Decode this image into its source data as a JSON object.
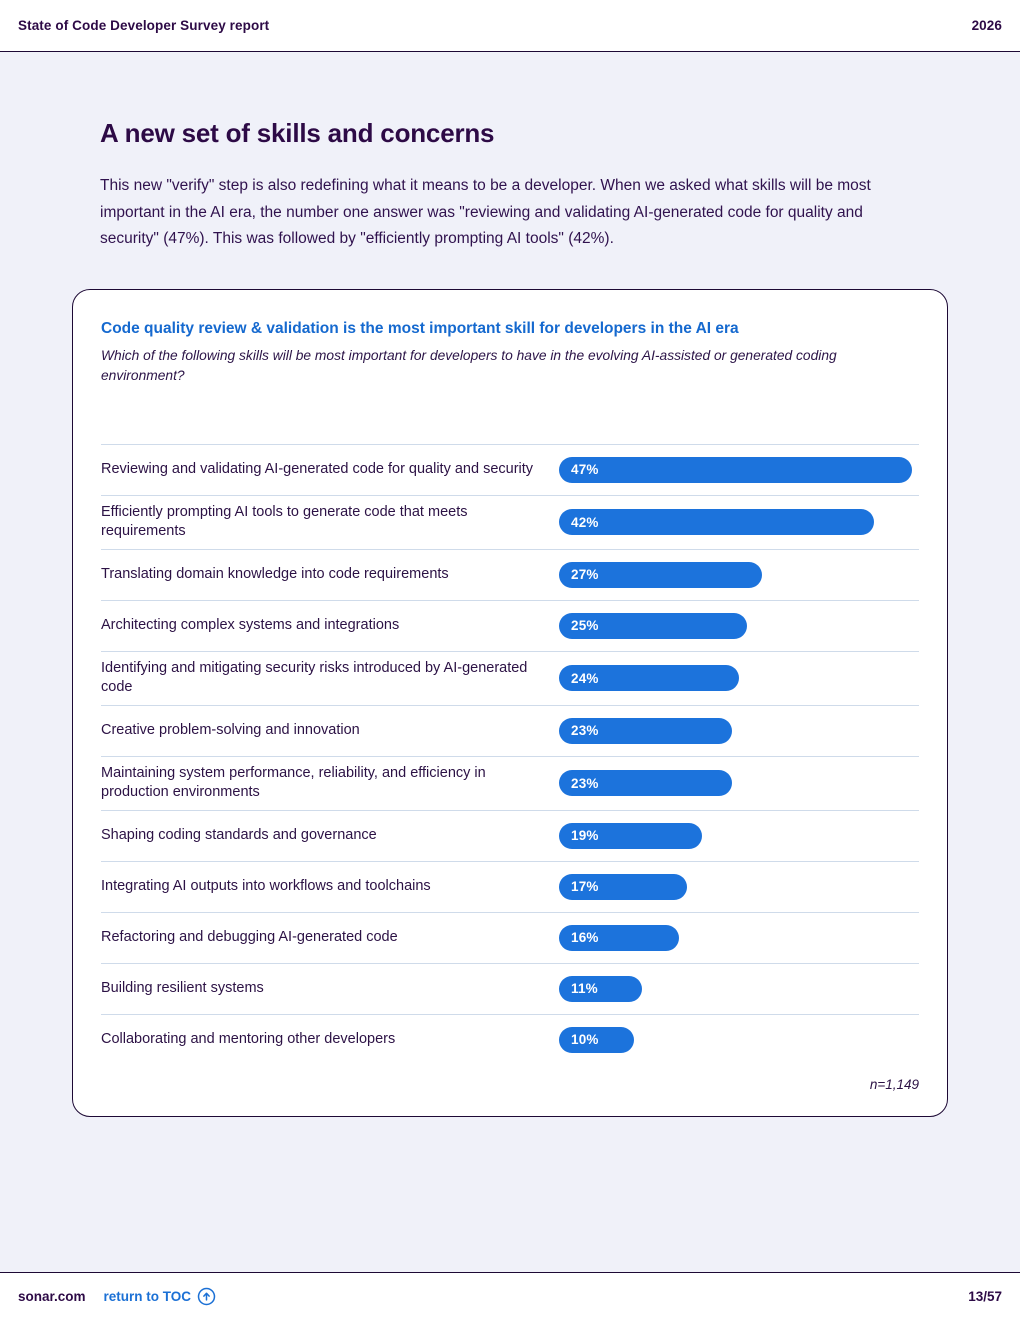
{
  "header": {
    "title": "State of Code Developer Survey report",
    "year": "2026"
  },
  "page": {
    "title": "A new set of skills and concerns",
    "paragraph": "This new \"verify\" step is also redefining what it means to be a developer. When we asked what skills will be most important in the AI era, the number one answer was \"reviewing and validating AI-generated code for quality and security\" (47%). This was followed by \"efficiently prompting AI tools\" (42%)."
  },
  "chart_card": {
    "title": "Code quality review & validation is the most important skill for developers in the AI era",
    "subtitle": "Which of the following skills will be most important for developers to have in the evolving AI-assisted or generated coding environment?",
    "sample_note": "n=1,149"
  },
  "chart_data": {
    "type": "bar",
    "orientation": "horizontal",
    "title": "Code quality review & validation is the most important skill for developers in the AI era",
    "categories": [
      "Reviewing and validating AI-generated code for quality and security",
      "Efficiently prompting AI tools to generate code that meets requirements",
      "Translating domain knowledge into code requirements",
      "Architecting complex systems and integrations",
      "Identifying and mitigating security risks introduced by AI-generated code",
      "Creative problem-solving and innovation",
      "Maintaining system performance, reliability, and efficiency in production environments",
      "Shaping coding standards and governance",
      "Integrating AI outputs into workflows and toolchains",
      "Refactoring and debugging AI-generated code",
      "Building resilient systems",
      "Collaborating and mentoring other developers"
    ],
    "values": [
      47,
      42,
      27,
      25,
      24,
      23,
      23,
      19,
      17,
      16,
      11,
      10
    ],
    "value_suffix": "%",
    "xlim": [
      0,
      48
    ],
    "bar_color": "#1C73DC",
    "grid": "row-dividers",
    "legend": "none",
    "sample_size": "n=1,149"
  },
  "footer": {
    "site": "sonar.com",
    "toc_label": "return to TOC",
    "page_number": "13/57"
  },
  "colors": {
    "accent_blue": "#1569CF",
    "bar_blue": "#1C73DC",
    "dark_purple": "#2D0A46",
    "page_background": "#F0F1F9",
    "divider": "#CFDBEA"
  }
}
